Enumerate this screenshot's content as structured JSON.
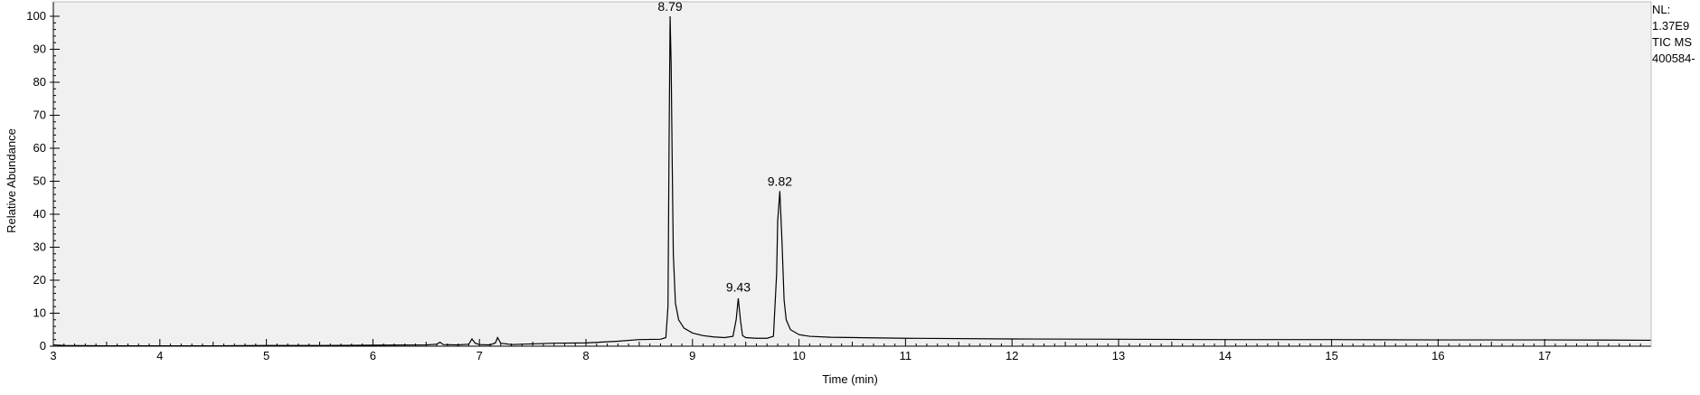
{
  "side_info": [
    "NL:",
    "1.37E9",
    "TIC  MS",
    "400584-"
  ],
  "chart_data": {
    "type": "line",
    "xlabel": "Time (min)",
    "ylabel": "Relative Abundance",
    "xlim": [
      3.0,
      18.0
    ],
    "ylim": [
      0,
      100
    ],
    "xticks": [
      3,
      4,
      5,
      6,
      7,
      8,
      9,
      10,
      11,
      12,
      13,
      14,
      15,
      16,
      17
    ],
    "yticks": [
      0,
      10,
      20,
      30,
      40,
      50,
      60,
      70,
      80,
      90,
      100
    ],
    "grid": false,
    "background": "#f0f0f0",
    "line_color": "#000000",
    "peak_labels": [
      {
        "x": 8.79,
        "y": 100,
        "label": "8.79"
      },
      {
        "x": 9.43,
        "y": 15,
        "label": "9.43"
      },
      {
        "x": 9.82,
        "y": 47,
        "label": "9.82"
      }
    ],
    "series": [
      {
        "x": [
          3.0,
          3.1,
          3.5,
          4.0,
          4.5,
          5.0,
          5.5,
          6.0,
          6.5,
          6.6,
          6.63,
          6.66,
          6.8,
          6.9,
          6.93,
          6.96,
          7.0,
          7.1,
          7.15,
          7.17,
          7.2,
          7.3,
          7.5,
          7.7,
          8.0,
          8.3,
          8.5,
          8.7,
          8.75,
          8.77,
          8.78,
          8.79,
          8.8,
          8.81,
          8.82,
          8.84,
          8.87,
          8.92,
          9.0,
          9.1,
          9.2,
          9.3,
          9.38,
          9.41,
          9.43,
          9.45,
          9.47,
          9.5,
          9.6,
          9.7,
          9.76,
          9.79,
          9.8,
          9.82,
          9.84,
          9.86,
          9.88,
          9.92,
          10.0,
          10.1,
          10.3,
          11.0,
          12.0,
          13.0,
          14.0,
          15.0,
          16.0,
          17.0,
          18.0
        ],
        "values": [
          0.4,
          0.2,
          0.1,
          0.1,
          0.1,
          0.2,
          0.2,
          0.3,
          0.4,
          0.6,
          1.2,
          0.5,
          0.4,
          0.6,
          2.2,
          0.9,
          0.5,
          0.4,
          1.0,
          2.6,
          0.9,
          0.5,
          0.7,
          0.9,
          1.0,
          1.5,
          2.0,
          2.1,
          2.6,
          12.0,
          60.0,
          100.0,
          85.0,
          55.0,
          28.0,
          13.0,
          8.0,
          5.5,
          4.0,
          3.2,
          2.8,
          2.6,
          3.0,
          8.0,
          14.5,
          8.0,
          3.2,
          2.6,
          2.4,
          2.4,
          3.0,
          22.0,
          38.0,
          47.0,
          32.0,
          14.0,
          8.0,
          5.0,
          3.5,
          3.0,
          2.7,
          2.4,
          2.2,
          2.1,
          2.0,
          2.0,
          1.9,
          1.9,
          1.8
        ]
      }
    ]
  }
}
